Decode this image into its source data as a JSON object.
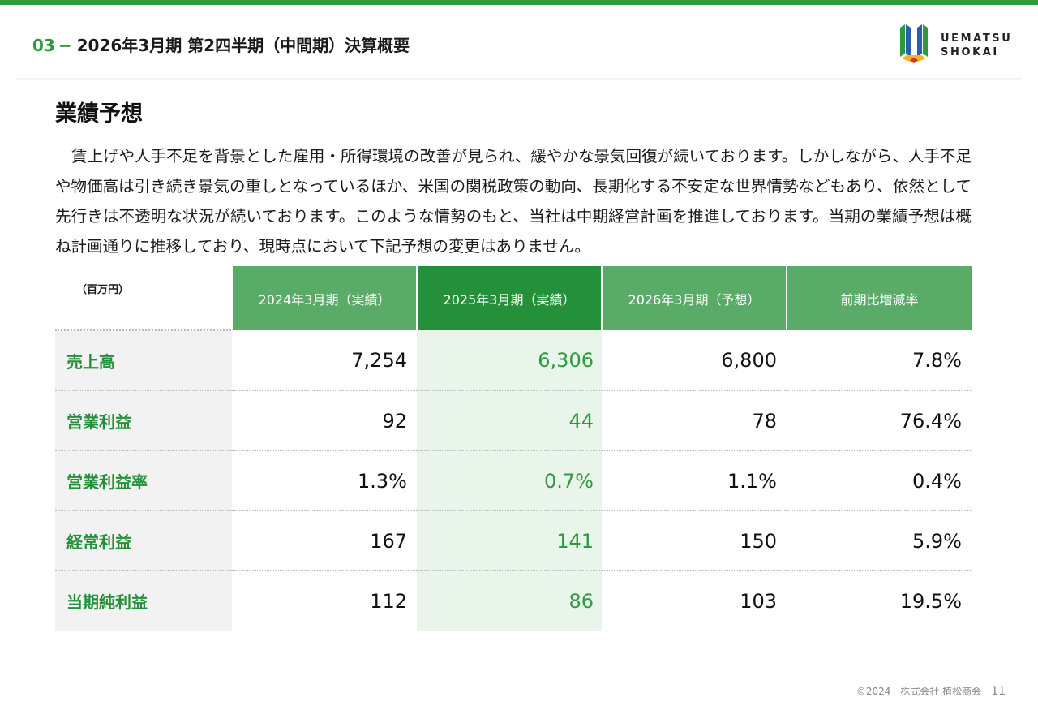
{
  "header": {
    "section_number": "03",
    "dash": "−",
    "title": "2026年3月期 第2四半期（中間期）決算概要"
  },
  "logo": {
    "line1": "UEMATSU",
    "line2": "SHOKAI",
    "mark_icon": "uematsu-logo-mark",
    "colors": [
      "#2e9a3f",
      "#2b5fae",
      "#f2b51d",
      "#d9322b"
    ]
  },
  "section_title": "業績予想",
  "body_text": "賃上げや人手不足を背景とした雇用・所得環境の改善が見られ、緩やかな景気回復が続いております。しかしながら、人手不足や物価高は引き続き景気の重しとなっているほか、米国の関税政策の動向、長期化する不安定な世界情勢などもあり、依然として先行きは不透明な状況が続いております。このような情勢のもと、当社は中期経営計画を推進しております。当期の業績予想は概ね計画通りに推移しており、現時点において下記予想の変更はありません。",
  "table": {
    "unit": "（百万円）",
    "headers": [
      "2024年3月期（実績）",
      "2025年3月期（実績）",
      "2026年3月期（予想）",
      "前期比増減率"
    ],
    "rows": [
      {
        "label": "売上高",
        "values": [
          "7,254",
          "6,306",
          "6,800",
          "7.8%"
        ]
      },
      {
        "label": "営業利益",
        "values": [
          "92",
          "44",
          "78",
          "76.4%"
        ]
      },
      {
        "label": "営業利益率",
        "values": [
          "1.3%",
          "0.7%",
          "1.1%",
          "0.4%"
        ]
      },
      {
        "label": "経常利益",
        "values": [
          "167",
          "141",
          "150",
          "5.9%"
        ]
      },
      {
        "label": "当期純利益",
        "values": [
          "112",
          "86",
          "103",
          "19.5%"
        ]
      }
    ]
  },
  "footer": {
    "copyright": "©2024　株式会社 植松商会",
    "page_number": "11"
  },
  "colors": {
    "accent_green": "#2e9a3f",
    "header_green": "#5aaa68",
    "header_dark_green": "#25903a",
    "highlight_column": "#e9f4ea"
  }
}
